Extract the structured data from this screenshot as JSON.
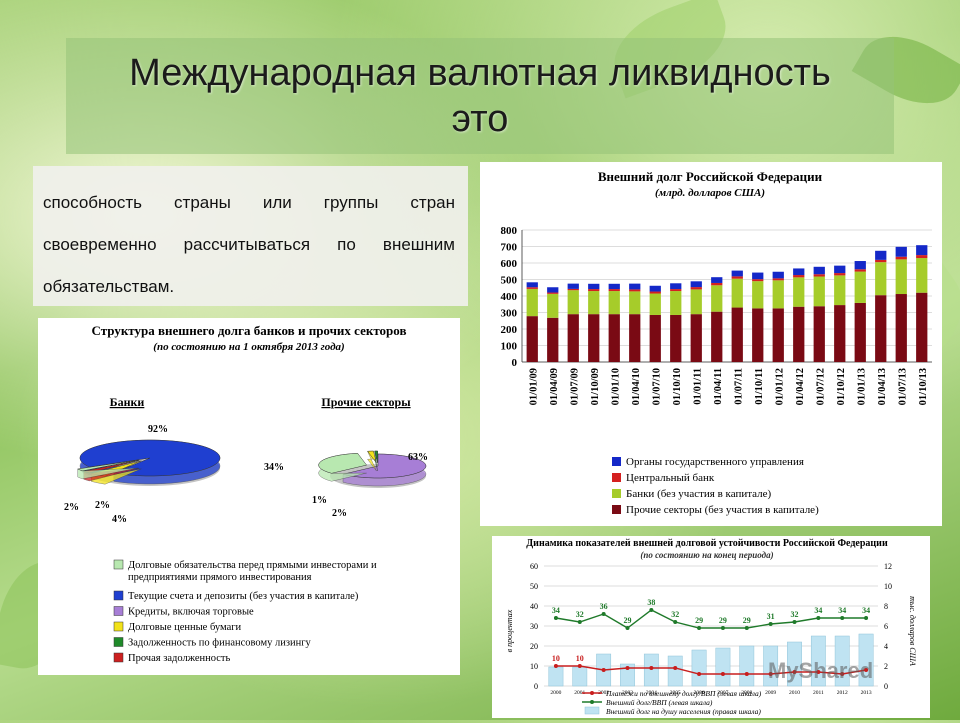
{
  "slide": {
    "title_line1": "Международная валютная ликвидность",
    "title_line2": "это",
    "definition": "способность страны или группы стран своевременно рассчитываться по внешним обязательствам."
  },
  "panel_structure": {
    "title": "Структура внешнего долга банков и прочих секторов",
    "subtitle": "(по состоянию на 1 октября 2013 года)",
    "pie_banks": {
      "label": "Банки",
      "slices": [
        {
          "value": 92,
          "label": "92%",
          "color": "#1f3fd0"
        },
        {
          "value": 4,
          "label": "4%",
          "color": "#f2e21a"
        },
        {
          "value": 2,
          "label": "2%",
          "color": "#cc2020"
        },
        {
          "value": 2,
          "label": "2%",
          "color": "#b8e8b0"
        }
      ]
    },
    "pie_other": {
      "label": "Прочие секторы",
      "slices": [
        {
          "value": 63,
          "label": "63%",
          "color": "#a77ed6"
        },
        {
          "value": 34,
          "label": "34%",
          "color": "#b8e8b0"
        },
        {
          "value": 2,
          "label": "2%",
          "color": "#f2e21a"
        },
        {
          "value": 1,
          "label": "1%",
          "color": "#1f8a2a"
        }
      ]
    },
    "legend": [
      {
        "label": "Долговые обязательства перед прямыми инвесторами и предприятиями прямого инвестирования",
        "color": "#b8e8b0"
      },
      {
        "label": "Текущие счета и депозиты (без участия в капитале)",
        "color": "#1f3fd0"
      },
      {
        "label": "Кредиты, включая торговые",
        "color": "#a77ed6"
      },
      {
        "label": "Долговые ценные бумаги",
        "color": "#f2e21a"
      },
      {
        "label": "Задолженность по финансовому лизингу",
        "color": "#1f8a2a"
      },
      {
        "label": "Прочая задолженность",
        "color": "#cc2020"
      }
    ]
  },
  "chart_data": [
    {
      "type": "bar",
      "title": "Внешний долг Российской Федерации",
      "subtitle": "(млрд. долларов США)",
      "categories": [
        "01/01/09",
        "01/04/09",
        "01/07/09",
        "01/10/09",
        "01/01/10",
        "01/04/10",
        "01/07/10",
        "01/10/10",
        "01/01/11",
        "01/04/11",
        "01/07/11",
        "01/10/11",
        "01/01/12",
        "01/04/12",
        "01/07/12",
        "01/10/12",
        "01/01/13",
        "01/04/13",
        "01/07/13",
        "01/10/13"
      ],
      "ylim": [
        0,
        800
      ],
      "yticks": [
        "0",
        "100",
        "200",
        "300",
        "400",
        "500",
        "600",
        "700",
        "800"
      ],
      "stacked": true,
      "series": [
        {
          "name": "Прочие секторы (без участия в капитале)",
          "color": "#7a0a14",
          "values": [
            278,
            268,
            290,
            290,
            290,
            290,
            285,
            285,
            290,
            305,
            330,
            325,
            325,
            335,
            338,
            345,
            358,
            405,
            412,
            420
          ]
        },
        {
          "name": "Банки (без участия в капитале)",
          "color": "#a6cc2a",
          "values": [
            165,
            145,
            145,
            140,
            140,
            138,
            130,
            145,
            150,
            160,
            175,
            165,
            170,
            178,
            180,
            180,
            190,
            200,
            210,
            210
          ]
        },
        {
          "name": "Центральный банк",
          "color": "#d42020",
          "values": [
            10,
            8,
            8,
            12,
            12,
            12,
            12,
            12,
            14,
            14,
            14,
            12,
            12,
            14,
            14,
            14,
            14,
            14,
            16,
            18
          ]
        },
        {
          "name": "Органы государственного управления",
          "color": "#1428c8",
          "values": [
            30,
            32,
            32,
            32,
            32,
            35,
            35,
            35,
            35,
            35,
            35,
            40,
            40,
            40,
            45,
            45,
            50,
            55,
            60,
            60
          ]
        }
      ],
      "legend_order": [
        "Органы государственного управления",
        "Центральный банк",
        "Банки (без участия в капитале)",
        "Прочие секторы (без участия в капитале)"
      ]
    },
    {
      "type": "line",
      "title": "Динамика показателей внешней долговой устойчивости Российской Федерации",
      "subtitle": "(по состоянию на конец периода)",
      "ylabel": "в процентах",
      "y2label": "тыс. долларов США",
      "ylim": [
        0,
        60
      ],
      "yticks": [
        "0",
        "10",
        "20",
        "30",
        "40",
        "50",
        "60"
      ],
      "y2lim": [
        0,
        12
      ],
      "y2ticks": [
        "0",
        "2",
        "4",
        "6",
        "8",
        "10",
        "12"
      ],
      "categories": [
        "2000",
        "2001",
        "2002",
        "2003",
        "2004",
        "2005",
        "2006",
        "2007",
        "2008",
        "2009",
        "2010",
        "2011",
        "2012",
        "2013"
      ],
      "series": [
        {
          "name": "Платежи по внешнему долгу/ВВП (левая шкала)",
          "color": "#c81e1e",
          "values": [
            10,
            10,
            8,
            9,
            9,
            9,
            6,
            6,
            6,
            6,
            7,
            7,
            6,
            8
          ],
          "labels": [
            "10",
            "10",
            "",
            "",
            "",
            "",
            "",
            "",
            "",
            "",
            "",
            "",
            "",
            ""
          ]
        },
        {
          "name": "Внешний долг/ВВП (левая шкала)",
          "color": "#1f7a2a",
          "values": [
            34,
            32,
            36,
            29,
            38,
            32,
            29,
            29,
            29,
            31,
            32,
            34,
            34,
            34
          ],
          "labels": [
            "34",
            "32",
            "36",
            "29",
            "38",
            "32",
            "29",
            "29",
            "29",
            "31",
            "32",
            "34",
            "34",
            "34"
          ]
        },
        {
          "name": "Внешний долг на душу населения (правая шкала)",
          "color": "#bfe3f2",
          "values": [
            1.9,
            1.9,
            3.2,
            2.2,
            3.2,
            3.0,
            3.6,
            3.8,
            4.0,
            4.0,
            4.4,
            5.0,
            5.0,
            5.2
          ]
        }
      ]
    }
  ],
  "watermark": "MyShared"
}
